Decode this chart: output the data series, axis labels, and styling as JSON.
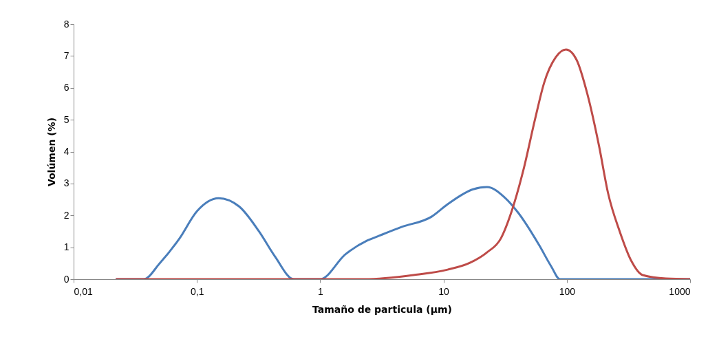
{
  "chart_data": {
    "type": "line",
    "xlabel": "Tamaño de particula (µm)",
    "ylabel": "Volúmen (%)",
    "log": "x",
    "grid": false,
    "legend": false,
    "marker": "none",
    "line_style": "solid",
    "xlim": [
      0.01,
      1000
    ],
    "xticks": [
      {
        "value": 0.01,
        "label": "0,01"
      },
      {
        "value": 0.1,
        "label": "0,1"
      },
      1,
      10,
      100,
      1000
    ],
    "ylim": [
      0,
      8
    ],
    "yticks": [
      0,
      1,
      2,
      3,
      4,
      5,
      6,
      7,
      8
    ],
    "series": [
      {
        "color": "#4a7ebb",
        "x": [
          0.022,
          0.037,
          0.05,
          0.072,
          0.1,
          0.15,
          0.22,
          0.32,
          0.43,
          0.61,
          1,
          1.6,
          2.4,
          3,
          4.6,
          8,
          10.8,
          17.4,
          22.5,
          31.4,
          40.6,
          59.8,
          74.5,
          88,
          1000
        ],
        "values": [
          0,
          0,
          0.5,
          1.27,
          2.13,
          2.54,
          2.28,
          1.49,
          0.71,
          0,
          0,
          0.78,
          1.21,
          1.36,
          1.64,
          1.96,
          2.35,
          2.82,
          2.89,
          2.56,
          2.07,
          1.06,
          0.41,
          0,
          0
        ]
      },
      {
        "color": "#be4b48",
        "x": [
          0.022,
          2.3,
          5.7,
          10.8,
          16.5,
          22.5,
          29.1,
          35.7,
          44.5,
          55.3,
          65.5,
          81.4,
          98.6,
          120,
          147,
          183,
          216,
          269,
          335,
          412,
          637,
          1000
        ],
        "values": [
          0,
          0,
          0.13,
          0.3,
          0.52,
          0.84,
          1.27,
          2.13,
          3.43,
          5.02,
          6.16,
          6.96,
          7.2,
          6.88,
          5.8,
          4.16,
          2.7,
          1.49,
          0.56,
          0.13,
          0.02,
          0
        ]
      }
    ]
  }
}
